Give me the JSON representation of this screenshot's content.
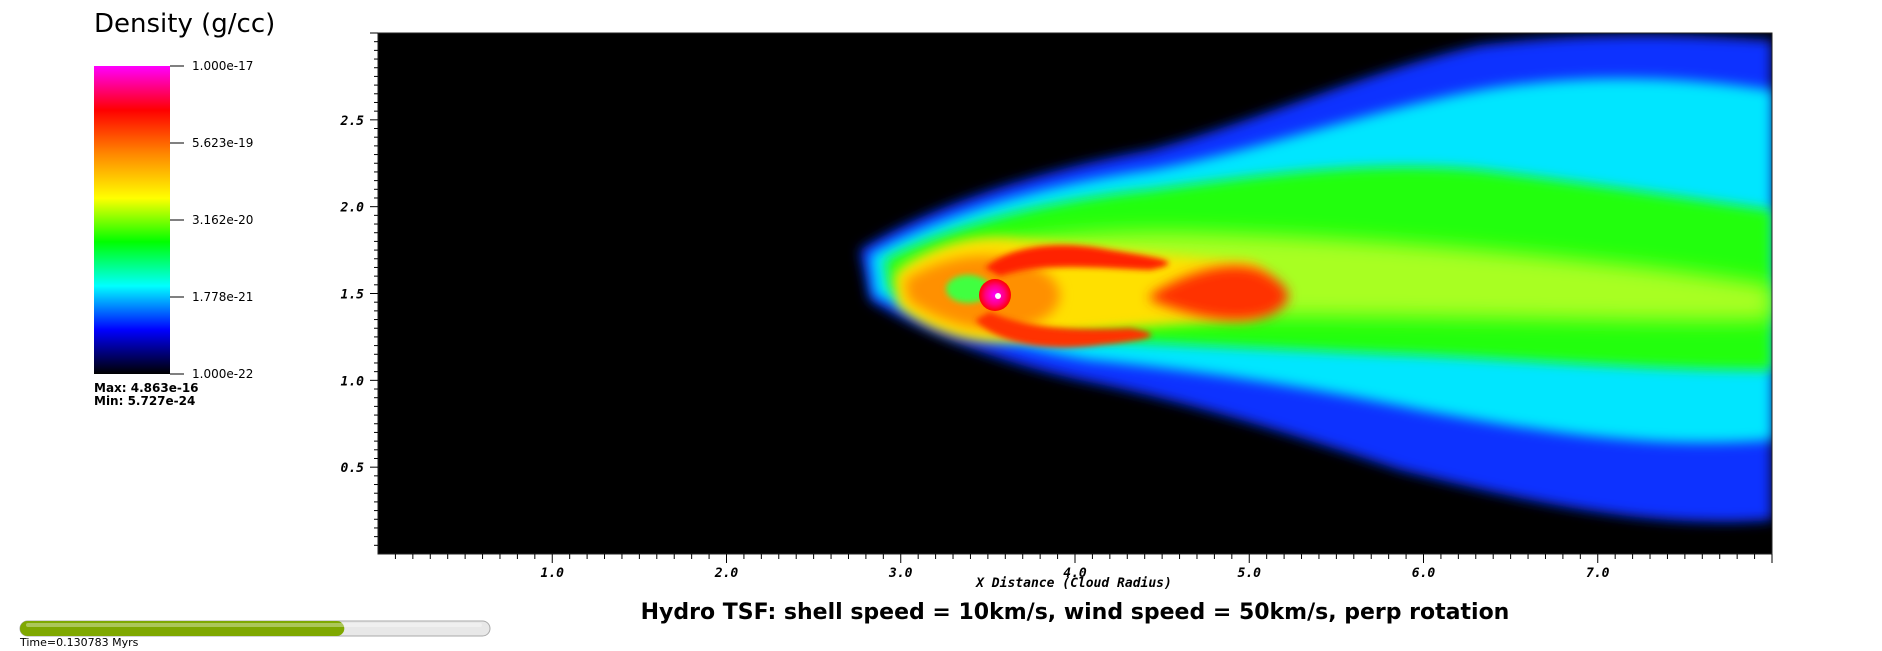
{
  "chart_data": {
    "type": "heatmap",
    "title": "Hydro TSF: shell speed = 10km/s, wind speed = 50km/s, perp rotation",
    "xlabel": "X Distance (Cloud Radius)",
    "ylabel": "",
    "xlim": [
      0,
      8.0
    ],
    "ylim": [
      0,
      3.0
    ],
    "x_ticks": [
      "1.0",
      "2.0",
      "3.0",
      "4.0",
      "5.0",
      "6.0",
      "7.0"
    ],
    "x_tick_values": [
      1,
      2,
      3,
      4,
      5,
      6,
      7
    ],
    "y_ticks": [
      "0.5",
      "1.0",
      "1.5",
      "2.0",
      "2.5"
    ],
    "y_tick_values": [
      0.5,
      1.0,
      1.5,
      2.0,
      2.5
    ],
    "colorbar": {
      "title": "Density (g/cc)",
      "scale": "log",
      "ticks": [
        "1.000e-17",
        "5.623e-19",
        "3.162e-20",
        "1.778e-21",
        "1.000e-22"
      ],
      "tick_values": [
        1e-17,
        5.623e-19,
        3.162e-20,
        1.778e-21,
        1e-22
      ],
      "colors": [
        "#ff00ff",
        "#ff0000",
        "#ff8800",
        "#ffff00",
        "#00ff00",
        "#00ffff",
        "#0000ff",
        "#000000"
      ],
      "max_label": "Max:  4.863e-16",
      "min_label": "Min:  5.727e-24"
    },
    "features": [
      {
        "name": "tail",
        "x": [
          2.9,
          8.0
        ],
        "y_center": 1.5,
        "y_half_width": [
          0.1,
          0.75
        ]
      },
      {
        "name": "dense clump",
        "x": 3.55,
        "y": 1.48
      },
      {
        "name": "secondary density peak",
        "x": 4.8,
        "y": 1.5
      }
    ]
  },
  "time_slider": {
    "label": "Time=0.130783 Myrs",
    "progress": 0.69,
    "fill_color": "#7fa800",
    "track_color": "#e8e8e8"
  }
}
